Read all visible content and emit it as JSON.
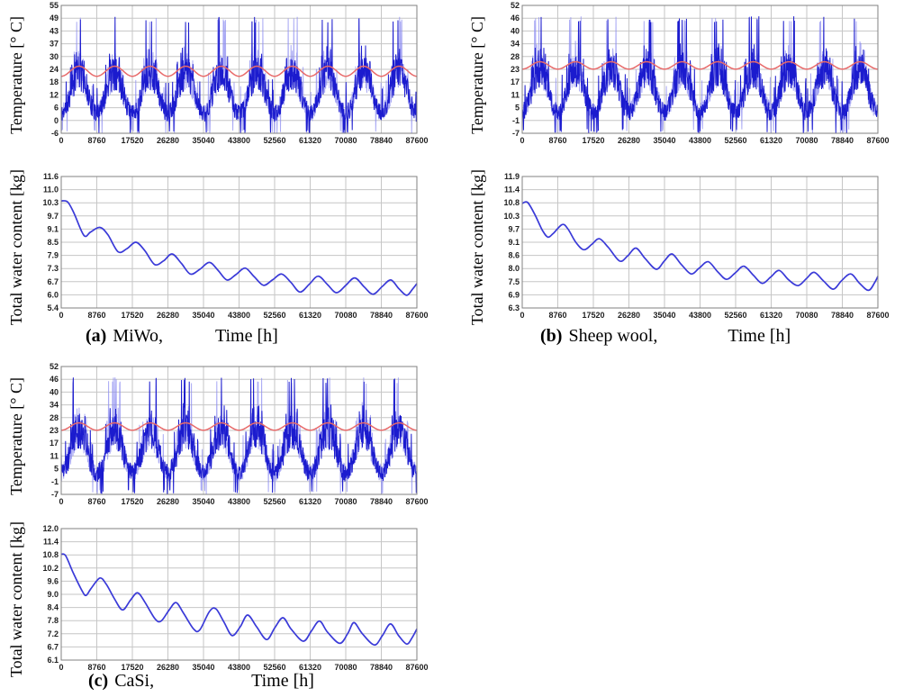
{
  "page": {
    "background": "#ffffff"
  },
  "colors": {
    "noisy_series": "#1b1bce",
    "noisy_series_light": "#8d8df0",
    "smooth_series": "#e86a6a",
    "water_series": "#3a3ad8",
    "grid": "#c6c6c6",
    "plot_border": "#828282",
    "tick_text": "#1f1f1f"
  },
  "captions": {
    "a": {
      "index": "(a)",
      "material": "MiWo,"
    },
    "b": {
      "index": "(b)",
      "material": "Sheep wool,"
    },
    "c": {
      "index": "(c)",
      "material": "CaSi,"
    }
  },
  "chart_data": [
    {
      "id": "a-temp",
      "type": "line",
      "panel": "a",
      "row": "temperature",
      "ylabel": "Temperature [° C]",
      "xlabel": "",
      "xlim": [
        0,
        87600
      ],
      "ylim": [
        -6,
        55
      ],
      "grid": true,
      "legend": "none",
      "x_tick_labels": [
        "0",
        "8760",
        "17520",
        "26280",
        "35040",
        "43800",
        "52560",
        "61320",
        "70080",
        "78840",
        "87600"
      ],
      "y_tick_labels": [
        "55",
        "49",
        "43",
        "37",
        "30",
        "24",
        "18",
        "12",
        "6",
        "0",
        "-6"
      ],
      "series": [
        {
          "role": "hourly-noisy-temperature",
          "color": "#1b1bce",
          "width": 1,
          "generator": {
            "kind": "seasonal_noise",
            "seed": 11,
            "points": 1150,
            "period": 8760,
            "winter_mean": 3.5,
            "summer_mean": 22.5,
            "noise": 7,
            "max": 49.6,
            "min": -6.2
          }
        },
        {
          "role": "smooth-seasonal-temperature",
          "color": "#e86a6a",
          "width": 1.5,
          "generator": {
            "kind": "cosine",
            "mean": 23.6,
            "amplitude": 2.4,
            "period": 8760
          }
        }
      ]
    },
    {
      "id": "a-water",
      "type": "line",
      "panel": "a",
      "row": "water",
      "ylabel": "Total water content [kg]",
      "xlabel": "Time [h]",
      "xlim": [
        0,
        87600
      ],
      "ylim": [
        5.4,
        11.6
      ],
      "grid": true,
      "legend": "none",
      "x_tick_labels": [
        "0",
        "8760",
        "17520",
        "26280",
        "35040",
        "43800",
        "52560",
        "61320",
        "70080",
        "78840",
        "87600"
      ],
      "y_tick_labels": [
        "11.6",
        "11.0",
        "10.3",
        "9.7",
        "9.1",
        "8.5",
        "7.9",
        "7.3",
        "6.7",
        "6.0",
        "5.4"
      ],
      "series": [
        {
          "role": "total-water-content",
          "color": "#3a3ad8",
          "width": 1.7,
          "points": [
            [
              0,
              10.45
            ],
            [
              1600,
              10.4
            ],
            [
              3200,
              9.85
            ],
            [
              5600,
              8.82
            ],
            [
              7200,
              8.98
            ],
            [
              9500,
              9.2
            ],
            [
              11500,
              8.85
            ],
            [
              14000,
              8.05
            ],
            [
              16200,
              8.2
            ],
            [
              18400,
              8.5
            ],
            [
              20600,
              8.1
            ],
            [
              23000,
              7.45
            ],
            [
              25200,
              7.62
            ],
            [
              27300,
              7.95
            ],
            [
              29600,
              7.5
            ],
            [
              31800,
              7.0
            ],
            [
              34100,
              7.22
            ],
            [
              36500,
              7.55
            ],
            [
              38600,
              7.18
            ],
            [
              40800,
              6.72
            ],
            [
              43000,
              6.97
            ],
            [
              45300,
              7.28
            ],
            [
              47500,
              6.88
            ],
            [
              49800,
              6.47
            ],
            [
              52000,
              6.72
            ],
            [
              54300,
              7.0
            ],
            [
              56600,
              6.6
            ],
            [
              58800,
              6.15
            ],
            [
              61100,
              6.52
            ],
            [
              63300,
              6.9
            ],
            [
              65600,
              6.5
            ],
            [
              67800,
              6.12
            ],
            [
              70100,
              6.47
            ],
            [
              72300,
              6.82
            ],
            [
              74600,
              6.4
            ],
            [
              76800,
              6.05
            ],
            [
              79100,
              6.42
            ],
            [
              81200,
              6.72
            ],
            [
              83200,
              6.3
            ],
            [
              85100,
              6.0
            ],
            [
              86500,
              6.28
            ],
            [
              87600,
              6.55
            ]
          ]
        }
      ]
    },
    {
      "id": "b-temp",
      "type": "line",
      "panel": "b",
      "row": "temperature",
      "ylabel": "Temperature [° C]",
      "xlabel": "",
      "xlim": [
        0,
        87600
      ],
      "ylim": [
        -7,
        52
      ],
      "grid": true,
      "legend": "none",
      "x_tick_labels": [
        "0",
        "8760",
        "17520",
        "26280",
        "35040",
        "43800",
        "52560",
        "61320",
        "70080",
        "78840",
        "87600"
      ],
      "y_tick_labels": [
        "52",
        "46",
        "40",
        "34",
        "28",
        "23",
        "17",
        "11",
        "5",
        "-1",
        "-7"
      ],
      "series": [
        {
          "role": "hourly-noisy-temperature",
          "color": "#1b1bce",
          "width": 1,
          "generator": {
            "kind": "seasonal_noise",
            "seed": 23,
            "points": 1150,
            "period": 8760,
            "winter_mean": 2.8,
            "summer_mean": 22,
            "noise": 7,
            "max": 47,
            "min": -7
          }
        },
        {
          "role": "smooth-seasonal-temperature",
          "color": "#e86a6a",
          "width": 1.5,
          "generator": {
            "kind": "cosine",
            "mean": 24.3,
            "amplitude": 1.7,
            "period": 8760
          }
        }
      ]
    },
    {
      "id": "b-water",
      "type": "line",
      "panel": "b",
      "row": "water",
      "ylabel": "Total water content [kg]",
      "xlabel": "Time [h]",
      "xlim": [
        0,
        87600
      ],
      "ylim": [
        6.3,
        11.9
      ],
      "grid": true,
      "legend": "none",
      "x_tick_labels": [
        "0",
        "8760",
        "17520",
        "26280",
        "35040",
        "43800",
        "52560",
        "61320",
        "70080",
        "78840",
        "87600"
      ],
      "y_tick_labels": [
        "11.9",
        "11.4",
        "10.8",
        "10.3",
        "9.7",
        "9.1",
        "8.6",
        "8.0",
        "7.5",
        "6.9",
        "6.3"
      ],
      "series": [
        {
          "role": "total-water-content",
          "color": "#3a3ad8",
          "width": 1.7,
          "points": [
            [
              0,
              10.75
            ],
            [
              1300,
              10.8
            ],
            [
              3100,
              10.28
            ],
            [
              5000,
              9.6
            ],
            [
              6300,
              9.32
            ],
            [
              7600,
              9.47
            ],
            [
              9800,
              9.85
            ],
            [
              11200,
              9.68
            ],
            [
              13200,
              9.1
            ],
            [
              15200,
              8.78
            ],
            [
              17200,
              9.02
            ],
            [
              19000,
              9.25
            ],
            [
              21200,
              8.88
            ],
            [
              24000,
              8.3
            ],
            [
              26000,
              8.52
            ],
            [
              28000,
              8.85
            ],
            [
              30300,
              8.4
            ],
            [
              33000,
              7.95
            ],
            [
              35000,
              8.3
            ],
            [
              36900,
              8.6
            ],
            [
              39200,
              8.15
            ],
            [
              41600,
              7.75
            ],
            [
              43600,
              8.0
            ],
            [
              45800,
              8.27
            ],
            [
              48100,
              7.85
            ],
            [
              50300,
              7.52
            ],
            [
              52500,
              7.8
            ],
            [
              54600,
              8.08
            ],
            [
              56900,
              7.7
            ],
            [
              59100,
              7.35
            ],
            [
              61200,
              7.62
            ],
            [
              63300,
              7.9
            ],
            [
              65600,
              7.5
            ],
            [
              67900,
              7.25
            ],
            [
              70000,
              7.55
            ],
            [
              71900,
              7.82
            ],
            [
              74200,
              7.45
            ],
            [
              76600,
              7.1
            ],
            [
              78600,
              7.45
            ],
            [
              80900,
              7.75
            ],
            [
              83100,
              7.35
            ],
            [
              85300,
              7.05
            ],
            [
              86800,
              7.38
            ],
            [
              87600,
              7.65
            ]
          ]
        }
      ]
    },
    {
      "id": "c-temp",
      "type": "line",
      "panel": "c",
      "row": "temperature",
      "ylabel": "Temperature [° C]",
      "xlabel": "",
      "xlim": [
        0,
        87600
      ],
      "ylim": [
        -7,
        52
      ],
      "grid": true,
      "legend": "none",
      "x_tick_labels": [
        "0",
        "8760",
        "17520",
        "26280",
        "35040",
        "43800",
        "52560",
        "61320",
        "70080",
        "78840",
        "87600"
      ],
      "y_tick_labels": [
        "52",
        "46",
        "40",
        "34",
        "28",
        "23",
        "17",
        "11",
        "5",
        "-1",
        "-7"
      ],
      "series": [
        {
          "role": "hourly-noisy-temperature",
          "color": "#1b1bce",
          "width": 1,
          "generator": {
            "kind": "seasonal_noise",
            "seed": 37,
            "points": 1150,
            "period": 8760,
            "winter_mean": 2.8,
            "summer_mean": 22,
            "noise": 7,
            "max": 47,
            "min": -7
          }
        },
        {
          "role": "smooth-seasonal-temperature",
          "color": "#e86a6a",
          "width": 1.5,
          "generator": {
            "kind": "cosine",
            "mean": 24.3,
            "amplitude": 1.7,
            "period": 8760
          }
        }
      ]
    },
    {
      "id": "c-water",
      "type": "line",
      "panel": "c",
      "row": "water",
      "ylabel": "Total water content [kg]",
      "xlabel": "Time [h]",
      "xlim": [
        0,
        87600
      ],
      "ylim": [
        6.1,
        12.0
      ],
      "grid": true,
      "legend": "none",
      "x_tick_labels": [
        "0",
        "8760",
        "17520",
        "26280",
        "35040",
        "43800",
        "52560",
        "61320",
        "70080",
        "78840",
        "87600"
      ],
      "y_tick_labels": [
        "12.0",
        "11.4",
        "10.8",
        "10.2",
        "9.6",
        "9.0",
        "8.4",
        "7.8",
        "7.2",
        "6.7",
        "6.1"
      ],
      "series": [
        {
          "role": "total-water-content",
          "color": "#3a3ad8",
          "width": 1.7,
          "points": [
            [
              0,
              10.85
            ],
            [
              1100,
              10.78
            ],
            [
              3000,
              10.0
            ],
            [
              5100,
              9.22
            ],
            [
              6100,
              9.0
            ],
            [
              7300,
              9.3
            ],
            [
              9500,
              9.78
            ],
            [
              11100,
              9.5
            ],
            [
              13100,
              8.85
            ],
            [
              15100,
              8.35
            ],
            [
              17100,
              8.8
            ],
            [
              18800,
              9.12
            ],
            [
              20600,
              8.7
            ],
            [
              23100,
              7.95
            ],
            [
              24600,
              7.85
            ],
            [
              26600,
              8.35
            ],
            [
              28300,
              8.68
            ],
            [
              30200,
              8.18
            ],
            [
              32600,
              7.5
            ],
            [
              34100,
              7.45
            ],
            [
              36500,
              8.28
            ],
            [
              38100,
              8.4
            ],
            [
              40100,
              7.8
            ],
            [
              42100,
              7.2
            ],
            [
              44100,
              7.6
            ],
            [
              45900,
              8.12
            ],
            [
              48100,
              7.6
            ],
            [
              50600,
              7.02
            ],
            [
              52600,
              7.55
            ],
            [
              54600,
              8.0
            ],
            [
              56600,
              7.5
            ],
            [
              59600,
              6.95
            ],
            [
              61600,
              7.4
            ],
            [
              63600,
              7.85
            ],
            [
              65600,
              7.35
            ],
            [
              68600,
              6.85
            ],
            [
              70600,
              7.3
            ],
            [
              72100,
              7.78
            ],
            [
              74100,
              7.3
            ],
            [
              77100,
              6.78
            ],
            [
              79100,
              7.2
            ],
            [
              81100,
              7.72
            ],
            [
              83100,
              7.2
            ],
            [
              85100,
              6.82
            ],
            [
              86400,
              7.1
            ],
            [
              87600,
              7.5
            ]
          ]
        }
      ]
    }
  ]
}
